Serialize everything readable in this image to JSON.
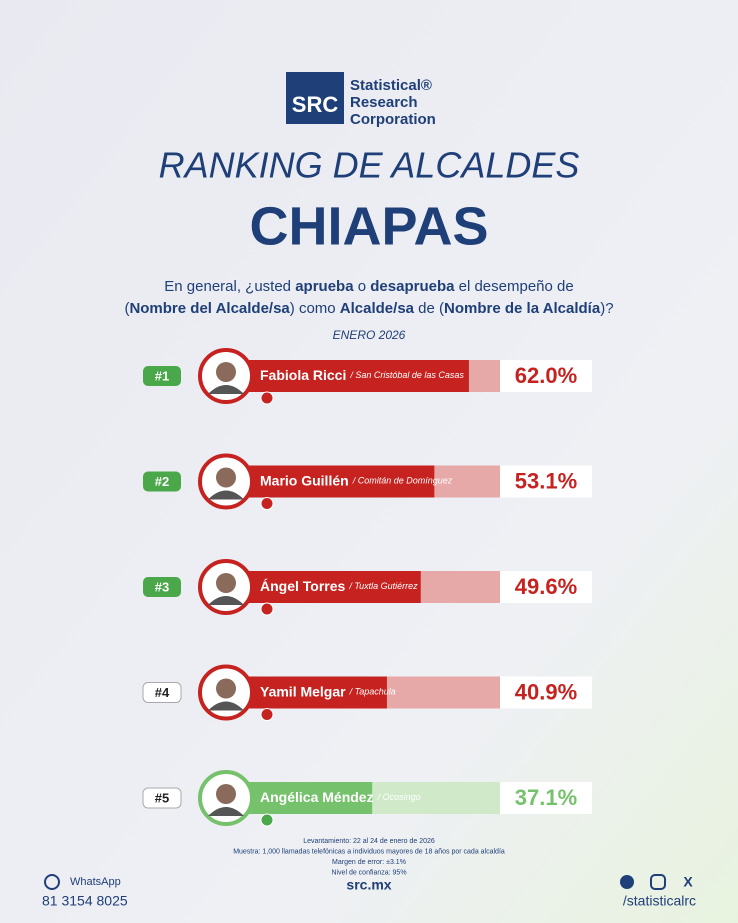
{
  "header": {
    "logo_mark": "SRC",
    "logo_lines": [
      "Statistical®",
      "Research",
      "Corporation"
    ],
    "kicker": "RANKING DE ALCALDES",
    "title": "CHIAPAS",
    "question": [
      [
        {
          "text": "En general, ¿usted ",
          "bold": false
        },
        {
          "text": "aprueba",
          "bold": true
        },
        {
          "text": " o ",
          "bold": false
        },
        {
          "text": "desaprueba",
          "bold": true
        },
        {
          "text": " el desempeño de",
          "bold": false
        }
      ],
      [
        {
          "text": "(",
          "bold": false
        },
        {
          "text": "Nombre del Alcalde/sa",
          "bold": true
        },
        {
          "text": ") como ",
          "bold": false
        },
        {
          "text": "Alcalde/sa",
          "bold": true
        },
        {
          "text": " de (",
          "bold": false
        },
        {
          "text": "Nombre de la Alcaldía",
          "bold": true
        },
        {
          "text": ")?",
          "bold": false
        }
      ]
    ],
    "date": "ENERO 2026"
  },
  "chart_data": {
    "type": "bar",
    "orientation": "horizontal",
    "ranks": [
      "#1",
      "#2",
      "#3",
      "#4",
      "#5"
    ],
    "categories": [
      "Fabiola Ricci",
      "Mario Guillén",
      "Ángel Torres",
      "Yamil Melgar",
      "Angélica Méndez"
    ],
    "places": [
      "/ San Cristóbal de las Casas",
      "/ Comitán de Domínguez",
      "/ Tuxtla Gutiérrez",
      "/ Tapachula",
      "/ Ocosingo"
    ],
    "values": [
      62.0,
      53.1,
      49.6,
      40.9,
      37.1
    ],
    "value_labels": [
      "62.0%",
      "53.1%",
      "49.6%",
      "40.9%",
      "37.1%"
    ],
    "colors": [
      "#c62320",
      "#c62320",
      "#c62320",
      "#c62320",
      "#76c16b"
    ],
    "xlim": [
      0,
      70
    ]
  },
  "footer": {
    "notes": [
      "Levantamiento: 22 al 24 de enero de 2026",
      "Muestra: 1,000 llamadas telefónicas a individuos mayores de 18 años por cada alcaldía",
      "Margen de error: ±3.1%",
      "Nivel de confianza: 95%"
    ],
    "whatsapp_label": "WhatsApp",
    "phone": "81 3154 8025",
    "website": "src.mx",
    "social": "/statisticalrc"
  }
}
